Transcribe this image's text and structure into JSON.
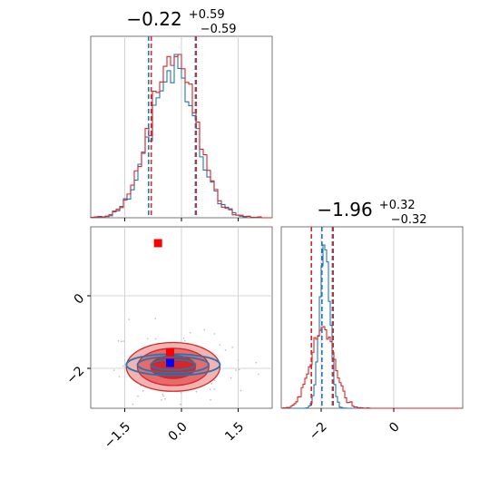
{
  "chart_data": [
    {
      "panel": "marginal-param-1",
      "type": "histogram",
      "title": {
        "median": "−0.22",
        "plus": "+0.59",
        "minus": "−0.59"
      },
      "xlim": [
        -2.4,
        2.4
      ],
      "x_ticks": [
        -1.5,
        0.0,
        1.5
      ],
      "series": [
        {
          "color": "#1f77b4",
          "mean": -0.22,
          "std": 0.59,
          "quantiles": [
            -0.8,
            -0.22,
            0.37
          ],
          "line_quantiles": [
            -0.87,
            0.37
          ]
        },
        {
          "color": "#d62728",
          "mean": -0.22,
          "std": 0.59,
          "quantiles": [
            -0.8,
            -0.22,
            0.37
          ],
          "line_quantiles": [
            -0.8,
            0.39
          ]
        }
      ],
      "grid": true
    },
    {
      "panel": "marginal-param-2",
      "type": "histogram",
      "title": {
        "median": "−1.96",
        "plus": "+0.32",
        "minus": "−0.32"
      },
      "xlim": [
        -3.1,
        1.9
      ],
      "x_ticks": [
        -2,
        0
      ],
      "x_tick_labels": [
        "−2",
        "0"
      ],
      "series": [
        {
          "color": "#1f77b4",
          "mean": -1.9,
          "std": 0.14,
          "line_quantiles": [
            -1.98,
            -1.69
          ]
        },
        {
          "color": "#d62728",
          "mean": -1.96,
          "std": 0.32,
          "line_quantiles": [
            -2.27,
            -1.67
          ]
        }
      ],
      "grid": true
    },
    {
      "panel": "joint-param-1-param-2",
      "type": "contour",
      "xlim": [
        -2.4,
        2.4
      ],
      "ylim": [
        -3.1,
        1.9
      ],
      "x_ticks": [
        -1.5,
        0.0,
        1.5
      ],
      "x_tick_labels": [
        "−1.5",
        "0.0",
        "1.5"
      ],
      "y_ticks": [
        -2,
        0
      ],
      "y_tick_labels": [
        "−2",
        "0"
      ],
      "contours": [
        {
          "color": "#1f77b4",
          "filled": false,
          "center": [
            -0.22,
            -1.9
          ],
          "sigma": [
            0.59,
            0.14
          ],
          "levels": [
            1.0,
            1.6,
            2.1
          ]
        },
        {
          "color": "#d62728",
          "filled": true,
          "center": [
            -0.22,
            -1.96
          ],
          "sigma": [
            0.59,
            0.32
          ],
          "levels": [
            1.0,
            1.6,
            2.1
          ]
        }
      ],
      "markers": [
        {
          "color": "#ff0000",
          "x": -0.62,
          "y": 1.45
        },
        {
          "color": "#ff0000",
          "x": -0.3,
          "y": -1.56
        },
        {
          "color": "#0000ff",
          "x": -0.3,
          "y": -1.85
        }
      ],
      "grid": true
    }
  ]
}
